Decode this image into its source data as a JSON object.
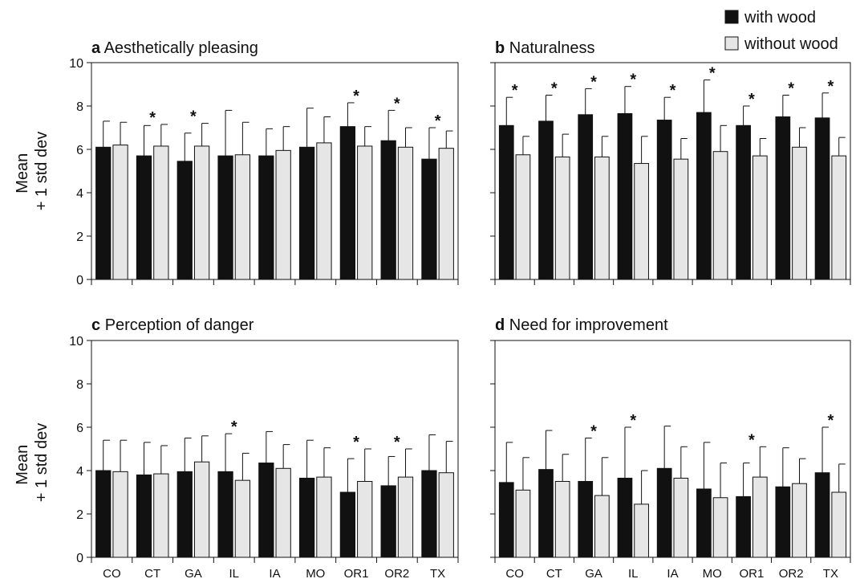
{
  "chart_data": {
    "type": "bar",
    "ylabel": "Mean\n+ 1 std dev",
    "ylim": [
      0,
      10
    ],
    "yticks": [
      0,
      2,
      4,
      6,
      8,
      10
    ],
    "categories": [
      "CO",
      "CT",
      "GA",
      "IL",
      "IA",
      "MO",
      "OR1",
      "OR2",
      "TX"
    ],
    "legend": {
      "placement": "top-right",
      "entries": [
        {
          "label": "with wood",
          "color": "#111111"
        },
        {
          "label": "without wood",
          "color": "#e6e6e6"
        }
      ]
    },
    "error_bars": "+1 std dev",
    "significance_marker": "*",
    "panels": [
      {
        "letter": "a",
        "title": "Aesthetically pleasing",
        "series": [
          {
            "name": "with wood",
            "values": [
              6.1,
              5.7,
              5.45,
              5.7,
              5.7,
              6.1,
              7.05,
              6.4,
              5.55
            ],
            "sd": [
              1.2,
              1.4,
              1.3,
              2.1,
              1.25,
              1.8,
              1.1,
              1.4,
              1.45
            ]
          },
          {
            "name": "without wood",
            "values": [
              6.2,
              6.15,
              6.15,
              5.75,
              5.95,
              6.3,
              6.15,
              6.1,
              6.05
            ],
            "sd": [
              1.05,
              1.0,
              1.05,
              1.5,
              1.1,
              1.2,
              0.9,
              0.9,
              0.8
            ]
          }
        ],
        "significant": [
          false,
          true,
          true,
          false,
          false,
          false,
          true,
          true,
          true
        ]
      },
      {
        "letter": "b",
        "title": "Naturalness",
        "series": [
          {
            "name": "with wood",
            "values": [
              7.1,
              7.3,
              7.6,
              7.65,
              7.35,
              7.7,
              7.1,
              7.5,
              7.45
            ],
            "sd": [
              1.3,
              1.2,
              1.2,
              1.25,
              1.05,
              1.5,
              0.9,
              1.0,
              1.15
            ]
          },
          {
            "name": "without wood",
            "values": [
              5.75,
              5.65,
              5.65,
              5.35,
              5.55,
              5.9,
              5.7,
              6.1,
              5.7
            ],
            "sd": [
              0.85,
              1.05,
              0.95,
              1.25,
              0.95,
              1.2,
              0.8,
              0.9,
              0.85
            ]
          }
        ],
        "significant": [
          true,
          true,
          true,
          true,
          true,
          true,
          true,
          true,
          true
        ]
      },
      {
        "letter": "c",
        "title": "Perception of danger",
        "series": [
          {
            "name": "with wood",
            "values": [
              4.0,
              3.8,
              3.95,
              3.95,
              4.35,
              3.65,
              3.0,
              3.3,
              4.0
            ],
            "sd": [
              1.4,
              1.5,
              1.55,
              1.75,
              1.45,
              1.75,
              1.55,
              1.35,
              1.65
            ]
          },
          {
            "name": "without wood",
            "values": [
              3.95,
              3.85,
              4.4,
              3.55,
              4.1,
              3.7,
              3.5,
              3.7,
              3.9
            ],
            "sd": [
              1.45,
              1.3,
              1.2,
              1.25,
              1.1,
              1.35,
              1.5,
              1.3,
              1.45
            ]
          }
        ],
        "significant": [
          false,
          false,
          false,
          true,
          false,
          false,
          true,
          true,
          false
        ]
      },
      {
        "letter": "d",
        "title": "Need for improvement",
        "series": [
          {
            "name": "with wood",
            "values": [
              3.45,
              4.05,
              3.5,
              3.65,
              4.1,
              3.15,
              2.8,
              3.25,
              3.9
            ],
            "sd": [
              1.85,
              1.8,
              2.0,
              2.35,
              1.95,
              2.15,
              1.55,
              1.8,
              2.1
            ]
          },
          {
            "name": "without wood",
            "values": [
              3.1,
              3.5,
              2.85,
              2.45,
              3.65,
              2.75,
              3.7,
              3.4,
              3.0
            ],
            "sd": [
              1.5,
              1.25,
              1.75,
              1.55,
              1.45,
              1.6,
              1.4,
              1.15,
              1.3
            ]
          }
        ],
        "significant": [
          false,
          false,
          true,
          true,
          false,
          false,
          true,
          false,
          true
        ]
      }
    ]
  }
}
